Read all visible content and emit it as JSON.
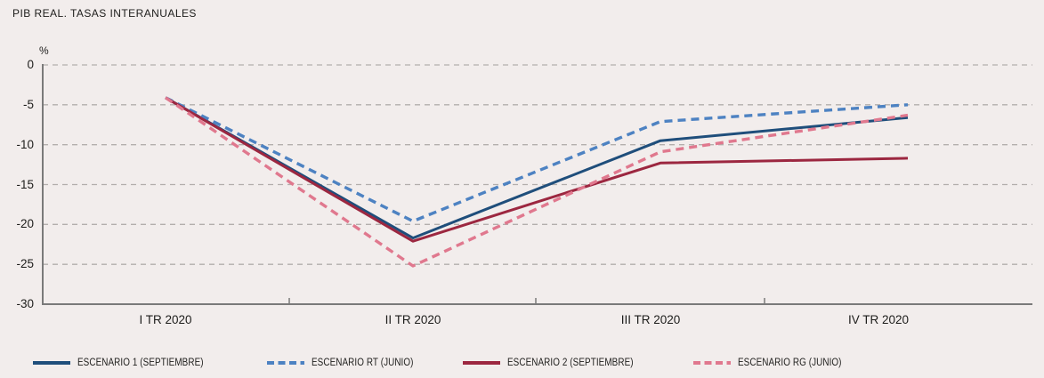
{
  "title": "PIB REAL. TASAS INTERANUALES",
  "chart_data": {
    "type": "line",
    "title": "PIB REAL. TASAS INTERANUALES",
    "unit_label": "%",
    "categories": [
      "I TR 2020",
      "II TR 2020",
      "III TR 2020",
      "IV TR 2020"
    ],
    "yticks": [
      0,
      -5,
      -10,
      -15,
      -20,
      -25,
      -30
    ],
    "ylim": [
      -30,
      0
    ],
    "grid": "horizontal dashed",
    "legend_position": "bottom",
    "series": [
      {
        "name": "ESCENARIO 1 (SEPTIEMBRE)",
        "style": "solid",
        "color": "#1f4e7b",
        "values": [
          -4.1,
          -21.7,
          -9.5,
          -6.6
        ]
      },
      {
        "name": "ESCENARIO RT (JUNIO)",
        "style": "dashed",
        "color": "#4d82c2",
        "values": [
          -4.1,
          -19.6,
          -7.1,
          -5.0
        ]
      },
      {
        "name": "ESCENARIO 2 (SEPTIEMBRE)",
        "style": "solid",
        "color": "#9c2740",
        "values": [
          -4.1,
          -22.1,
          -12.3,
          -11.7
        ]
      },
      {
        "name": "ESCENARIO RG (JUNIO)",
        "style": "dashed",
        "color": "#e0788e",
        "values": [
          -4.1,
          -25.2,
          -10.9,
          -6.3
        ]
      }
    ]
  },
  "colors": {
    "background": "#f2edec",
    "gridline": "#b3aeac",
    "axis": "#7a7a7a",
    "text": "#1d1d1b"
  }
}
